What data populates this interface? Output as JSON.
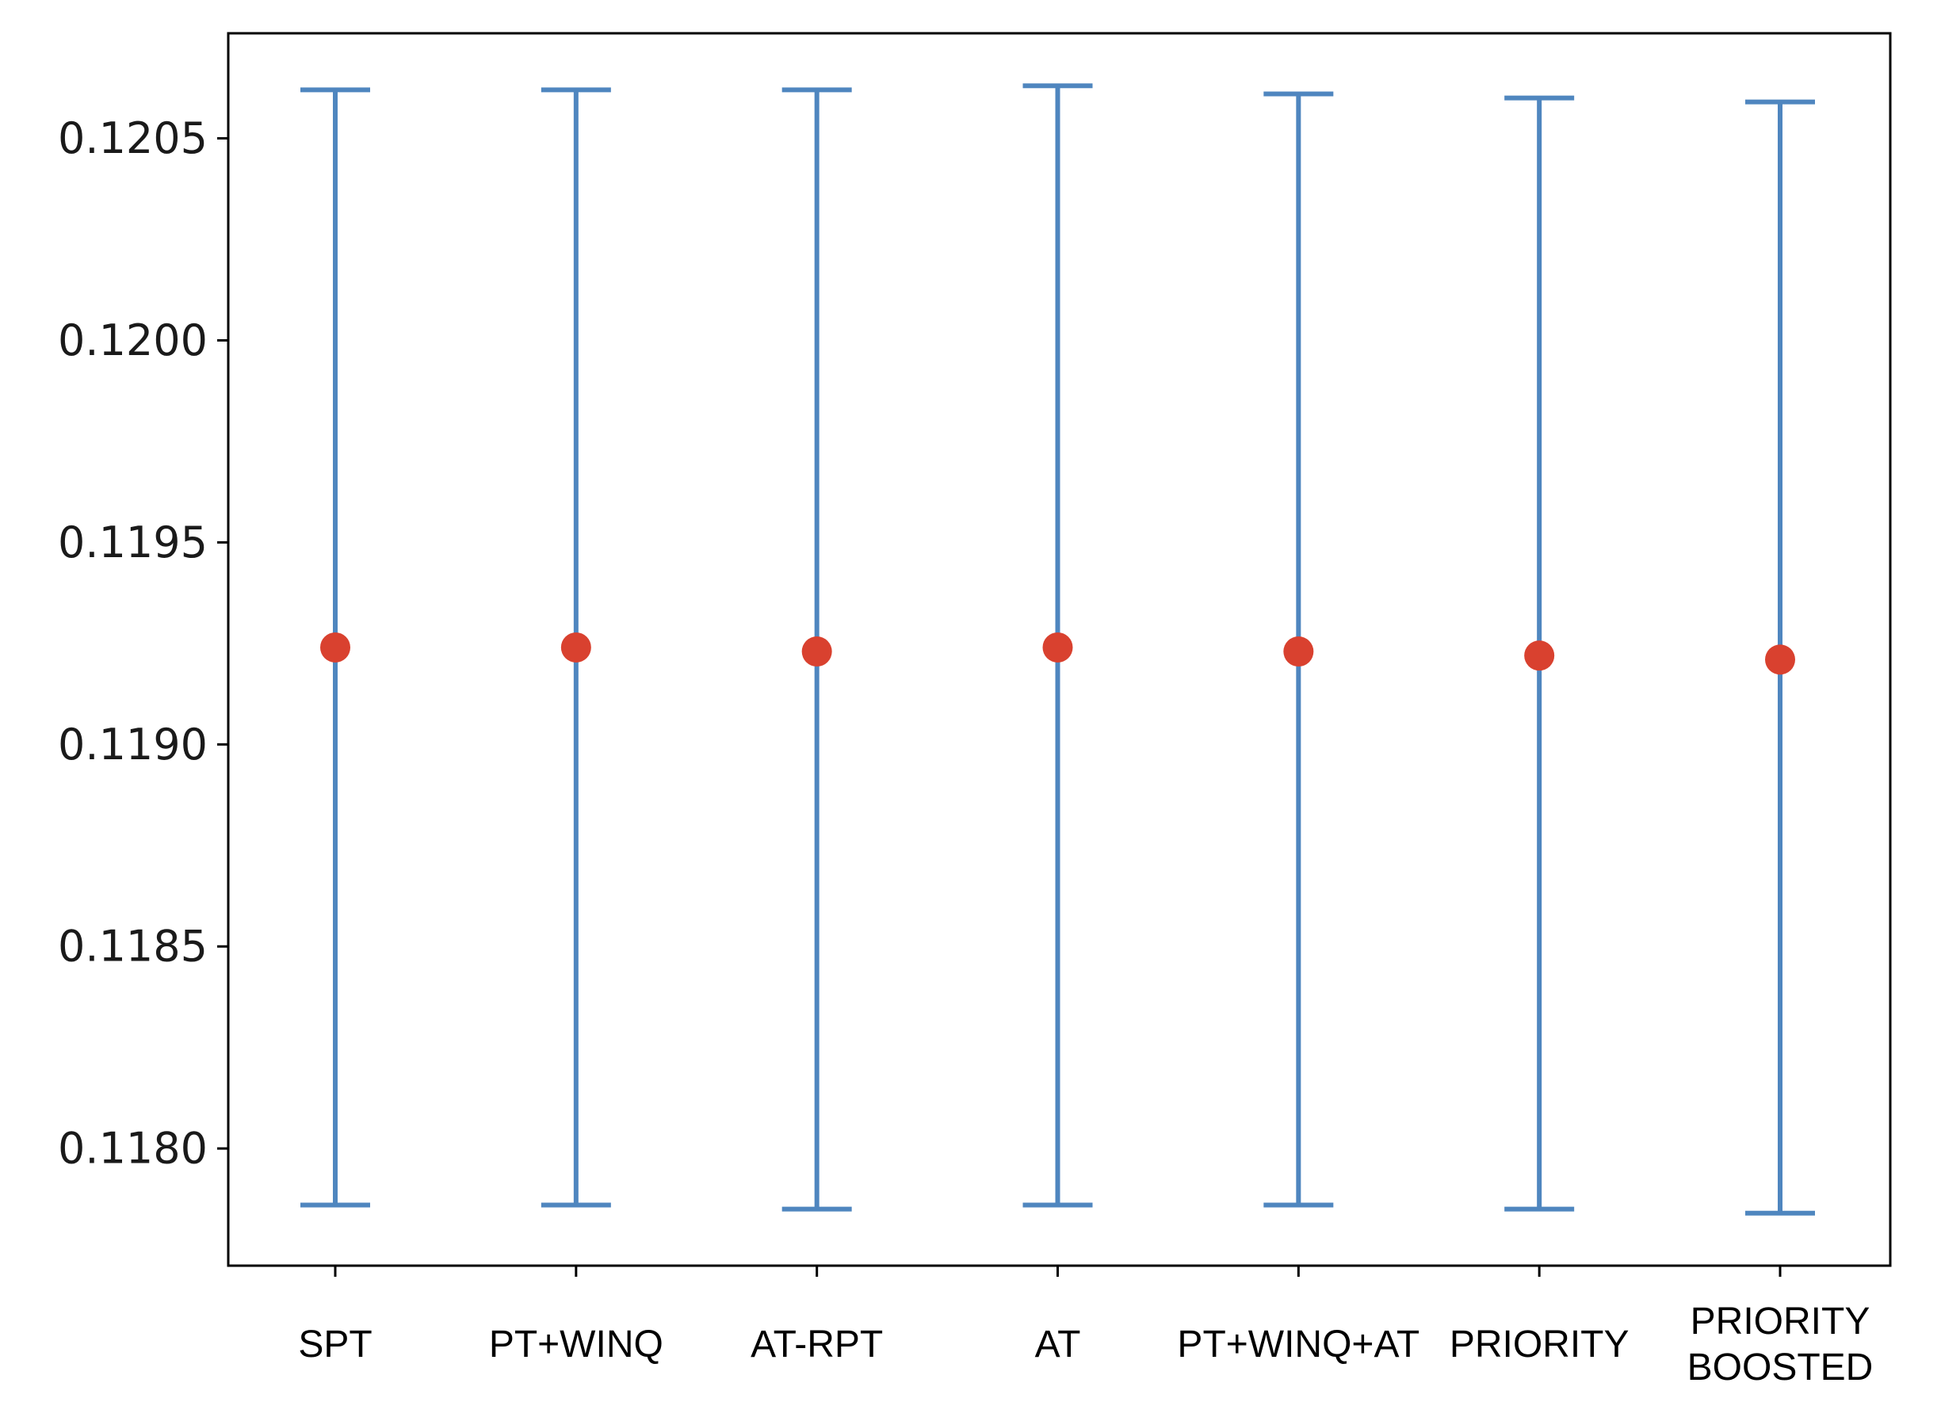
{
  "chart_data": {
    "type": "errorbar",
    "title": "",
    "xlabel": "",
    "ylabel": "",
    "ylim": [
      0.11771,
      0.12076
    ],
    "yticks": [
      0.118,
      0.1185,
      0.119,
      0.1195,
      0.12,
      0.1205
    ],
    "ytick_labels": [
      "0.1180",
      "0.1185",
      "0.1190",
      "0.1195",
      "0.1200",
      "0.1205"
    ],
    "categories": [
      [
        "SPT"
      ],
      [
        "PT+WINQ"
      ],
      [
        "AT-RPT"
      ],
      [
        "AT"
      ],
      [
        "PT+WINQ+AT"
      ],
      [
        "PRIORITY"
      ],
      [
        "PRIORITY",
        "BOOSTED"
      ]
    ],
    "means": [
      0.11924,
      0.11924,
      0.11923,
      0.11924,
      0.11923,
      0.11922,
      0.11921
    ],
    "lower": [
      0.11786,
      0.11786,
      0.11785,
      0.11786,
      0.11786,
      0.11785,
      0.11784
    ],
    "upper": [
      0.12062,
      0.12062,
      0.12062,
      0.12063,
      0.12061,
      0.1206,
      0.12059
    ],
    "grid": false,
    "colors": {
      "errorbar": "#4f86bf",
      "marker": "#d9412f",
      "axes": "#000000"
    }
  }
}
